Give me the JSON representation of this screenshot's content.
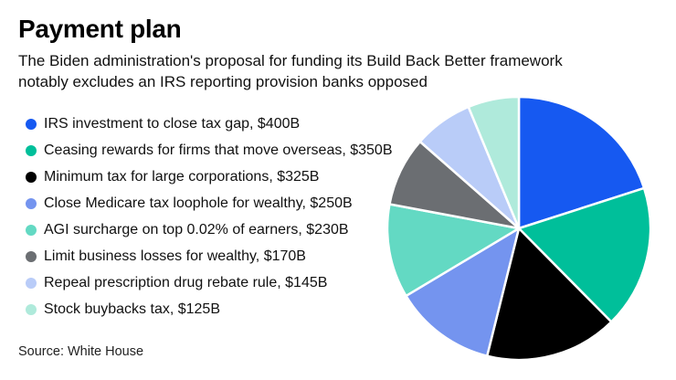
{
  "header": {
    "title": "Payment plan",
    "subtitle_line1": "The Biden administration's proposal for funding its Build Back Better framework",
    "subtitle_line2": "notably excludes an IRS reporting provision banks opposed"
  },
  "chart_data": {
    "type": "pie",
    "title": "Payment plan",
    "unit": "USD billions",
    "total": 1995,
    "start_angle_deg": 0,
    "direction": "clockwise",
    "legend_position": "left",
    "slice_gap_color": "#ffffff",
    "slices": [
      {
        "label": "IRS investment to close tax gap",
        "amount": "$400B",
        "value": 400,
        "color": "#1659F1"
      },
      {
        "label": "Ceasing rewards for firms that move overseas",
        "amount": "$350B",
        "value": 350,
        "color": "#00BF9A"
      },
      {
        "label": "Minimum tax for large corporations",
        "amount": "$325B",
        "value": 325,
        "color": "#000000"
      },
      {
        "label": "Close Medicare tax loophole for wealthy",
        "amount": "$250B",
        "value": 250,
        "color": "#7494EF"
      },
      {
        "label": "AGI surcharge on top 0.02% of earners",
        "amount": "$230B",
        "value": 230,
        "color": "#63D9C3"
      },
      {
        "label": "Limit business losses for wealthy",
        "amount": "$170B",
        "value": 170,
        "color": "#6B6E72"
      },
      {
        "label": "Repeal prescription drug rebate rule",
        "amount": "$145B",
        "value": 145,
        "color": "#B9CCF8"
      },
      {
        "label": "Stock buybacks tax",
        "amount": "$125B",
        "value": 125,
        "color": "#AFEADB"
      }
    ]
  },
  "source": {
    "text": "Source: White House"
  }
}
